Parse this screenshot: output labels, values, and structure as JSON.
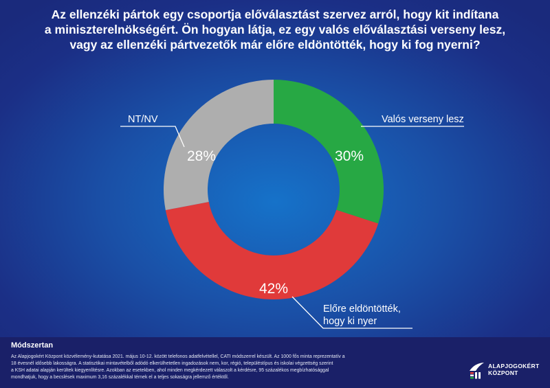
{
  "title_lines": [
    "Az ellenzéki pártok egy csoportja előválasztást szervez arról, hogy kit indítana",
    "a miniszterelnökségért. Ön hogyan látja, ez egy valós előválasztási verseny lesz,",
    "vagy az ellenzéki pártvezetők már előre eldöntötték, hogy ki fog nyerni?"
  ],
  "chart_data": {
    "type": "pie",
    "variant": "donut",
    "unit": "%",
    "slices": [
      {
        "label": "Valós verseny lesz",
        "value": 30,
        "value_label": "30%",
        "color": "#27a844"
      },
      {
        "label": "Előre eldöntötték, hogy ki nyer",
        "label_lines": [
          "Előre eldöntötték,",
          "hogy ki nyer"
        ],
        "value": 42,
        "value_label": "42%",
        "color": "#e03a3a"
      },
      {
        "label": "NT/NV",
        "value": 28,
        "value_label": "28%",
        "color": "#aeaeae"
      }
    ]
  },
  "footer": {
    "method_title": "Módszertan",
    "method_lines": [
      "Az Alapjogokért Központ közvélemény-kutatása 2021. május 10-12. között telefonos adatfelvétellel, CATI módszerrel készült. Az 1000 fős minta reprezentatív a",
      "18 évesnél idősebb lakosságra. A statisztikai mintavételből adódó elkerülhetetlen ingadozások nem, kor, régió, településtípus és iskolai végzettség szerint",
      "a KSH adatai alapján kerültek kiegyenlítésre. Azokban az esetekben, ahol minden megkérdezett válaszolt a kérdésre, 95 százalékos megbízhatósággal",
      "mondhatjuk, hogy a becslések maximum 3,16 százalékkal térnek el a teljes sokaságra jellemző értéktől."
    ],
    "logo_lines": [
      "ALAPJOGOKÉRT",
      "KÖZPONT"
    ]
  }
}
